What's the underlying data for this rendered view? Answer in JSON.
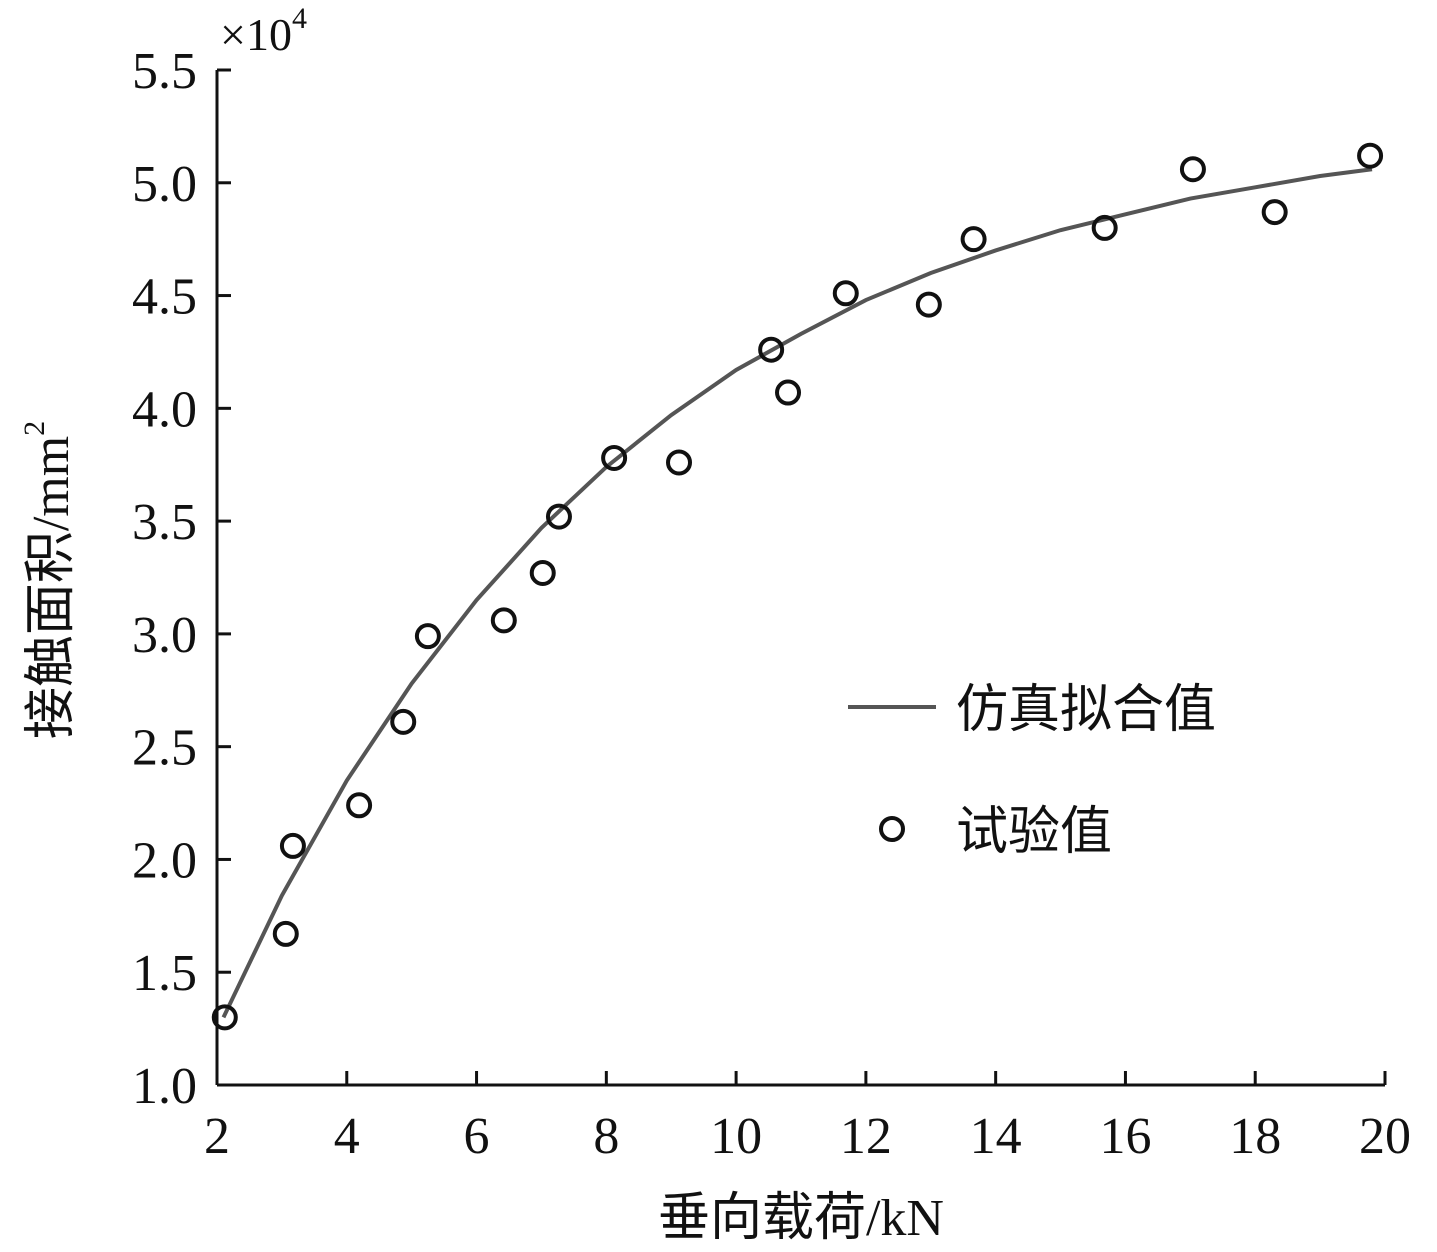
{
  "chart_data": {
    "type": "scatter",
    "xlabel": "垂向载荷/kN",
    "ylabel": {
      "text": "接触面积/mm",
      "superscript": "2"
    },
    "y_multiplier": {
      "text": "×10",
      "superscript": "4"
    },
    "xlim": [
      2,
      20
    ],
    "xticks": [
      2,
      4,
      6,
      8,
      10,
      12,
      14,
      16,
      18,
      20
    ],
    "ylim": [
      1,
      5.5
    ],
    "yticks": [
      {
        "value": 1,
        "label": "1.0"
      },
      {
        "value": 1.5,
        "label": "1.5"
      },
      {
        "value": 2,
        "label": "2.0"
      },
      {
        "value": 2.5,
        "label": "2.5"
      },
      {
        "value": 3,
        "label": "3.0"
      },
      {
        "value": 3.5,
        "label": "3.5"
      },
      {
        "value": 4,
        "label": "4.0"
      },
      {
        "value": 4.5,
        "label": "4.5"
      },
      {
        "value": 5,
        "label": "5.0"
      },
      {
        "value": 5.5,
        "label": "5.5"
      }
    ],
    "grid": false,
    "legend": "right",
    "series": [
      {
        "name": "仿真拟合值",
        "style": "line",
        "color": "#555555",
        "x": [
          2.1,
          3,
          4,
          5,
          6,
          7,
          8,
          9,
          10,
          11,
          12,
          13,
          14,
          15,
          16,
          17,
          18,
          19,
          19.8
        ],
        "values": [
          1.3,
          1.84,
          2.35,
          2.78,
          3.15,
          3.47,
          3.74,
          3.97,
          4.17,
          4.33,
          4.48,
          4.6,
          4.7,
          4.79,
          4.86,
          4.93,
          4.98,
          5.03,
          5.06
        ]
      },
      {
        "name": "试验值",
        "style": "marker",
        "color": "#111111",
        "x": [
          2.12,
          3.06,
          3.17,
          4.19,
          4.87,
          5.25,
          6.42,
          7.02,
          7.27,
          8.12,
          9.12,
          10.54,
          10.8,
          11.69,
          12.97,
          13.66,
          15.68,
          17.04,
          18.3,
          19.77
        ],
        "values": [
          1.3,
          1.67,
          2.06,
          2.24,
          2.61,
          2.99,
          3.06,
          3.27,
          3.52,
          3.78,
          3.76,
          4.26,
          4.07,
          4.51,
          4.46,
          4.75,
          4.8,
          5.06,
          4.87,
          5.12
        ]
      }
    ]
  }
}
